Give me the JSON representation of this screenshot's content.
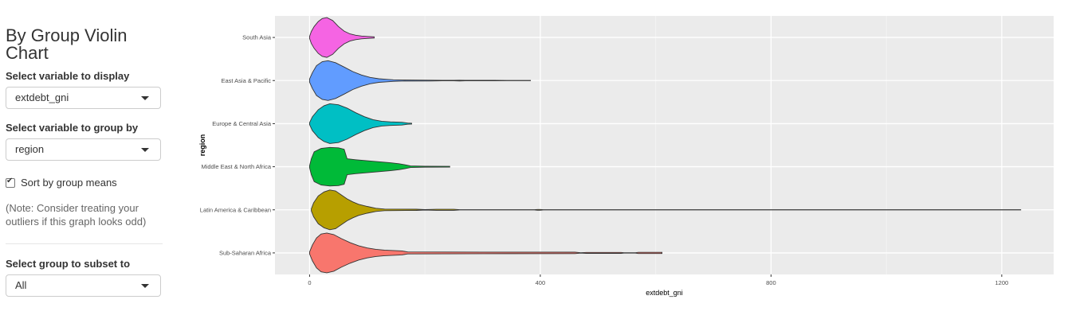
{
  "sidebar": {
    "title": "By Group Violin Chart",
    "display_label": "Select variable to display",
    "display_value": "extdebt_gni",
    "group_label": "Select variable to group by",
    "group_value": "region",
    "sort_label": "Sort by group means",
    "sort_checked": true,
    "note": "(Note: Consider treating your outliers if this graph looks odd)",
    "subset_label": "Select group to subset to",
    "subset_value": "All"
  },
  "chart_data": {
    "type": "violin",
    "xlabel": "extdebt_gni",
    "ylabel": "region",
    "xlim": [
      -60,
      1290
    ],
    "x_ticks": [
      0,
      400,
      800,
      1200
    ],
    "grid": true,
    "background": "#ebebeb",
    "series": [
      {
        "name": "South Asia",
        "color": "#f564e3",
        "min": 0,
        "max": 112,
        "shape": [
          [
            0,
            0.05
          ],
          [
            3,
            0.3
          ],
          [
            8,
            0.55
          ],
          [
            15,
            0.8
          ],
          [
            22,
            0.95
          ],
          [
            30,
            1.0
          ],
          [
            40,
            0.85
          ],
          [
            50,
            0.55
          ],
          [
            60,
            0.32
          ],
          [
            70,
            0.18
          ],
          [
            80,
            0.11
          ],
          [
            90,
            0.07
          ],
          [
            100,
            0.05
          ],
          [
            112,
            0.03
          ]
        ]
      },
      {
        "name": "East Asia & Pacific",
        "color": "#619cff",
        "min": 0,
        "max": 383,
        "shape": [
          [
            0,
            0.08
          ],
          [
            5,
            0.4
          ],
          [
            12,
            0.75
          ],
          [
            22,
            0.95
          ],
          [
            32,
            1.0
          ],
          [
            45,
            0.9
          ],
          [
            60,
            0.68
          ],
          [
            75,
            0.45
          ],
          [
            90,
            0.28
          ],
          [
            105,
            0.16
          ],
          [
            120,
            0.09
          ],
          [
            135,
            0.06
          ],
          [
            145,
            0.04
          ],
          [
            160,
            0.025
          ],
          [
            210,
            0.02
          ],
          [
            230,
            0.012
          ],
          [
            250,
            0.012
          ],
          [
            260,
            0.02
          ],
          [
            270,
            0.012
          ],
          [
            320,
            0.008
          ],
          [
            383,
            0.006
          ]
        ]
      },
      {
        "name": "Europe & Central Asia",
        "color": "#00bfc4",
        "min": 0,
        "max": 177,
        "shape": [
          [
            0,
            0.05
          ],
          [
            5,
            0.35
          ],
          [
            15,
            0.7
          ],
          [
            25,
            0.9
          ],
          [
            35,
            1.0
          ],
          [
            50,
            0.95
          ],
          [
            65,
            0.78
          ],
          [
            80,
            0.55
          ],
          [
            95,
            0.35
          ],
          [
            110,
            0.2
          ],
          [
            125,
            0.12
          ],
          [
            140,
            0.09
          ],
          [
            150,
            0.08
          ],
          [
            160,
            0.07
          ],
          [
            170,
            0.03
          ],
          [
            177,
            0.02
          ]
        ]
      },
      {
        "name": "Middle East & North Africa",
        "color": "#00ba38",
        "min": 0,
        "max": 243,
        "shape": [
          [
            0,
            0.05
          ],
          [
            3,
            0.4
          ],
          [
            8,
            0.75
          ],
          [
            20,
            0.92
          ],
          [
            35,
            0.97
          ],
          [
            50,
            0.95
          ],
          [
            60,
            0.88
          ],
          [
            65,
            0.4
          ],
          [
            80,
            0.35
          ],
          [
            100,
            0.3
          ],
          [
            120,
            0.25
          ],
          [
            140,
            0.2
          ],
          [
            155,
            0.15
          ],
          [
            165,
            0.1
          ],
          [
            175,
            0.04
          ],
          [
            200,
            0.025
          ],
          [
            243,
            0.02
          ]
        ]
      },
      {
        "name": "Latin America & Caribbean",
        "color": "#b79f00",
        "min": 3,
        "max": 1233,
        "shape": [
          [
            3,
            0.05
          ],
          [
            7,
            0.35
          ],
          [
            15,
            0.7
          ],
          [
            25,
            0.9
          ],
          [
            35,
            1.0
          ],
          [
            45,
            0.95
          ],
          [
            55,
            0.75
          ],
          [
            65,
            0.55
          ],
          [
            75,
            0.4
          ],
          [
            85,
            0.28
          ],
          [
            100,
            0.17
          ],
          [
            115,
            0.08
          ],
          [
            130,
            0.04
          ],
          [
            185,
            0.03
          ],
          [
            200,
            0.01
          ],
          [
            220,
            0.025
          ],
          [
            250,
            0.025
          ],
          [
            260,
            0.008
          ],
          [
            390,
            0.008
          ],
          [
            395,
            0.02
          ],
          [
            400,
            0.02
          ],
          [
            405,
            0.008
          ],
          [
            700,
            0.006
          ],
          [
            1000,
            0.005
          ],
          [
            1233,
            0.005
          ]
        ]
      },
      {
        "name": "Sub-Saharan Africa",
        "color": "#f8766d",
        "min": 0,
        "max": 611,
        "shape": [
          [
            0,
            0.05
          ],
          [
            5,
            0.4
          ],
          [
            12,
            0.75
          ],
          [
            20,
            0.95
          ],
          [
            30,
            1.0
          ],
          [
            42,
            0.92
          ],
          [
            55,
            0.72
          ],
          [
            70,
            0.52
          ],
          [
            85,
            0.36
          ],
          [
            100,
            0.25
          ],
          [
            115,
            0.18
          ],
          [
            130,
            0.14
          ],
          [
            145,
            0.12
          ],
          [
            160,
            0.1
          ],
          [
            170,
            0.05
          ],
          [
            300,
            0.04
          ],
          [
            460,
            0.035
          ],
          [
            470,
            0.01
          ],
          [
            480,
            0.025
          ],
          [
            540,
            0.025
          ],
          [
            545,
            0.01
          ],
          [
            565,
            0.01
          ],
          [
            570,
            0.03
          ],
          [
            611,
            0.03
          ]
        ]
      }
    ]
  }
}
